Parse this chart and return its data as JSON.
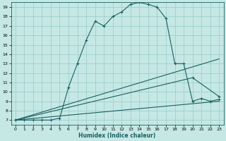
{
  "xlabel": "Humidex (Indice chaleur)",
  "xlim": [
    -0.5,
    23.5
  ],
  "ylim": [
    6.5,
    19.5
  ],
  "xticks": [
    0,
    1,
    2,
    3,
    4,
    5,
    6,
    7,
    8,
    9,
    10,
    11,
    12,
    13,
    14,
    15,
    16,
    17,
    18,
    19,
    20,
    21,
    22,
    23
  ],
  "yticks": [
    7,
    8,
    9,
    10,
    11,
    12,
    13,
    14,
    15,
    16,
    17,
    18,
    19
  ],
  "bg_color": "#c5e8e5",
  "grid_color": "#9ecece",
  "line_color": "#1a6060",
  "main_x": [
    0,
    1,
    2,
    3,
    4,
    5,
    6,
    7,
    8,
    9,
    10,
    11,
    12,
    13,
    14,
    15,
    16,
    17,
    18,
    19,
    20,
    21,
    22,
    23
  ],
  "main_y": [
    7,
    7,
    7,
    7,
    7,
    7.2,
    10.5,
    13,
    15.5,
    17.5,
    17,
    18,
    18.5,
    19.3,
    19.5,
    19.3,
    19,
    17.8,
    13,
    13,
    9,
    9.3,
    9,
    9.2
  ],
  "line2_x": [
    0,
    23
  ],
  "line2_y": [
    7,
    13.5
  ],
  "line3_x": [
    0,
    20,
    23
  ],
  "line3_y": [
    7,
    11.5,
    9.5
  ],
  "line4_x": [
    0,
    23
  ],
  "line4_y": [
    7,
    9.0
  ]
}
